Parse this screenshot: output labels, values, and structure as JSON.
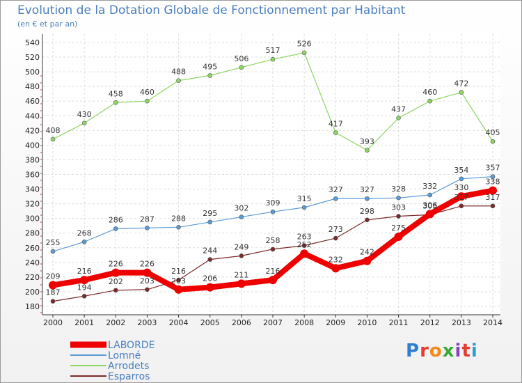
{
  "title": "Evolution de la Dotation Globale de Fonctionnement par Habitant",
  "subtitle": "(en € et par an)",
  "logo": {
    "letters": [
      "P",
      "r",
      "o",
      "x",
      "i",
      "t",
      "i"
    ],
    "colors": [
      "#2f7fd0",
      "#e53b2f",
      "#f08a1c",
      "#3aa93a",
      "#8c3fc0",
      "#e53b2f",
      "#2f9fd0"
    ]
  },
  "chart_data": {
    "type": "line",
    "x": [
      "2000",
      "2001",
      "2002",
      "2003",
      "2004",
      "2005",
      "2006",
      "2007",
      "2008",
      "2009",
      "2010",
      "2011",
      "2012",
      "2013",
      "2014"
    ],
    "yticks": [
      "180",
      "200",
      "220",
      "240",
      "260",
      "280",
      "300",
      "320",
      "340",
      "360",
      "380",
      "400",
      "420",
      "440",
      "460",
      "480",
      "500",
      "520",
      "540"
    ],
    "ylim": [
      180,
      540
    ],
    "grid": true,
    "legend_position": "bottom-left",
    "series": [
      {
        "name": "LABORDE",
        "color": "#ee0000",
        "values": [
          209,
          216,
          226,
          226,
          203,
          206,
          211,
          216,
          252,
          232,
          242,
          275,
          306,
          330,
          338
        ],
        "labels": [
          "209",
          "216",
          "226",
          "226",
          "203",
          "206",
          "211",
          "216",
          "252",
          "232",
          "242",
          "275",
          "306",
          "330",
          "338"
        ]
      },
      {
        "name": "Lomné",
        "color": "#5b9bd5",
        "values": [
          255,
          268,
          286,
          287,
          288,
          295,
          302,
          309,
          315,
          327,
          327,
          328,
          332,
          354,
          357
        ],
        "labels": [
          "255",
          "268",
          "286",
          "287",
          "288",
          "295",
          "302",
          "309",
          "315",
          "327",
          "327",
          "328",
          "332",
          "354",
          "357"
        ]
      },
      {
        "name": "Arrodets",
        "color": "#8ed563",
        "values": [
          408,
          430,
          458,
          460,
          488,
          495,
          506,
          517,
          526,
          417,
          393,
          437,
          460,
          472,
          405
        ],
        "labels": [
          "408",
          "430",
          "458",
          "460",
          "488",
          "495",
          "506",
          "517",
          "526",
          "417",
          "393",
          "437",
          "460",
          "472",
          "405"
        ]
      },
      {
        "name": "Esparros",
        "color": "#7a2a2a",
        "values": [
          187,
          194,
          202,
          203,
          216,
          244,
          249,
          258,
          263,
          273,
          298,
          303,
          305,
          317,
          317
        ],
        "labels": [
          "187",
          "194",
          "202",
          "203",
          "216",
          "244",
          "249",
          "258",
          "263",
          "273",
          "298",
          "303",
          "305",
          "317",
          "317"
        ]
      }
    ]
  }
}
